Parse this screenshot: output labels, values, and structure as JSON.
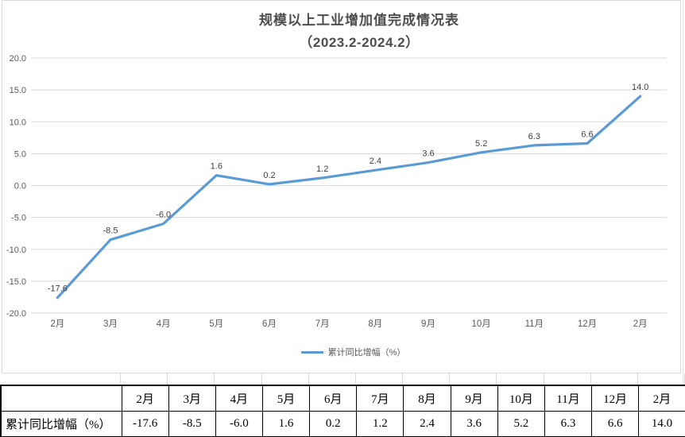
{
  "chart": {
    "title": "规模以上工业增加值完成情况表",
    "subtitle": "（2023.2-2024.2）",
    "legend_label": "累计同比增幅（%）",
    "colors": {
      "line": "#5B9BD5",
      "gridline": "#D9D9D9",
      "axis_text": "#595959",
      "title_text": "#4D4D4D",
      "data_label_text": "#404040",
      "frame_border": "#D9D9D9"
    }
  },
  "chart_data": {
    "type": "line",
    "title": "规模以上工业增加值完成情况表（2023.2-2024.2）",
    "categories": [
      "2月",
      "3月",
      "4月",
      "5月",
      "6月",
      "7月",
      "8月",
      "9月",
      "10月",
      "11月",
      "12月",
      "2月"
    ],
    "series": [
      {
        "name": "累计同比增幅（%）",
        "color": "#5B9BD5",
        "values": [
          -17.6,
          -8.5,
          -6.0,
          1.6,
          0.2,
          1.2,
          2.4,
          3.6,
          5.2,
          6.3,
          6.6,
          14.0
        ]
      }
    ],
    "ylim": [
      -20.0,
      20.0
    ],
    "ytick_step": 5.0,
    "ytick_labels": [
      "20.0",
      "15.0",
      "10.0",
      "5.0",
      "0.0",
      "-5.0",
      "-10.0",
      "-15.0",
      "-20.0"
    ],
    "grid": true,
    "data_labels": true,
    "legend_position": "bottom"
  },
  "table": {
    "header": [
      "",
      "2月",
      "3月",
      "4月",
      "5月",
      "6月",
      "7月",
      "8月",
      "9月",
      "10月",
      "11月",
      "12月",
      "2月"
    ],
    "rows": [
      {
        "label": "累计同比增幅（%）",
        "values": [
          "-17.6",
          "-8.5",
          "-6.0",
          "1.6",
          "0.2",
          "1.2",
          "2.4",
          "3.6",
          "5.2",
          "6.3",
          "6.6",
          "14.0"
        ]
      }
    ]
  }
}
